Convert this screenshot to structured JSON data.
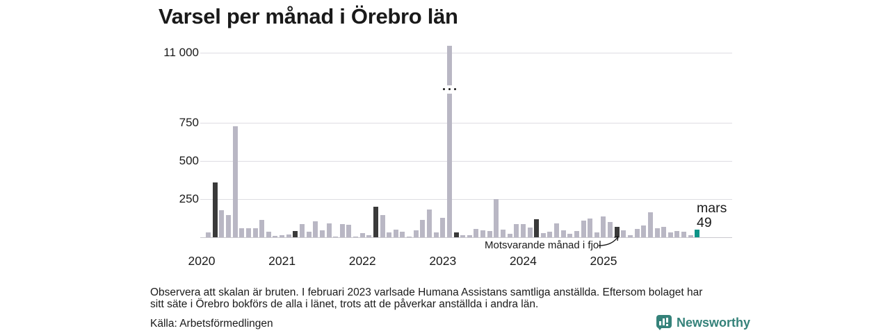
{
  "title": "Varsel per månad i Örebro län",
  "chart_data": {
    "type": "bar",
    "title": "Varsel per månad i Örebro län",
    "ylabel": "",
    "xlabel": "",
    "broken_scale": true,
    "y_ticks": [
      {
        "label": "250",
        "value": 250
      },
      {
        "label": "500",
        "value": 500
      },
      {
        "label": "750",
        "value": 750
      },
      {
        "label": "11 000",
        "value": 11000
      }
    ],
    "x_ticks": [
      "2020",
      "2021",
      "2022",
      "2023",
      "2024",
      "2025"
    ],
    "series_start": "2020-01",
    "series_end": "2026-03",
    "values_by_year": {
      "2020": [
        0,
        30,
        360,
        175,
        145,
        725,
        60,
        60,
        60,
        115,
        35,
        8
      ],
      "2021": [
        12,
        18,
        42,
        85,
        38,
        105,
        45,
        90,
        5,
        85,
        80,
        5
      ],
      "2022": [
        27,
        15,
        200,
        145,
        30,
        50,
        35,
        5,
        45,
        115,
        180,
        30
      ],
      "2023": [
        125,
        11030,
        33,
        15,
        12,
        53,
        45,
        40,
        250,
        50,
        23,
        86
      ],
      "2024": [
        86,
        64,
        118,
        27,
        36,
        90,
        45,
        23,
        41,
        110,
        123,
        32
      ],
      "2025": [
        136,
        100,
        68,
        45,
        15,
        55,
        75,
        165,
        60,
        70,
        30,
        41
      ],
      "2026": [
        35,
        15,
        49
      ]
    },
    "highlight": {
      "dark_bars": "mars varje år (samma månad som senaste)",
      "latest_bar": "2026-03"
    },
    "latest_label": {
      "month": "mars",
      "value": "49"
    },
    "annotation": "Motsvarande månad i fjol",
    "legend_position": "none",
    "grid": true
  },
  "footnote": {
    "line1": "Observera att skalan är bruten. I februari 2023 varlsade Humana Assistans samtliga anställda. Eftersom bolaget har",
    "line2": "sitt säte i Örebro bokförs de alla i länet, trots att de påverkar anställda i andra län."
  },
  "source": "Källa: Arbetsförmedlingen",
  "logo": {
    "text": "Newsworthy"
  },
  "colors": {
    "bar_gray": "#b9b7c4",
    "bar_dark": "#3a3a3a",
    "accent_teal": "#0d9488",
    "logo_teal": "#35827a",
    "grid": "#dedde2",
    "axis": "#c9c8ce",
    "text": "#1a1a1a"
  }
}
